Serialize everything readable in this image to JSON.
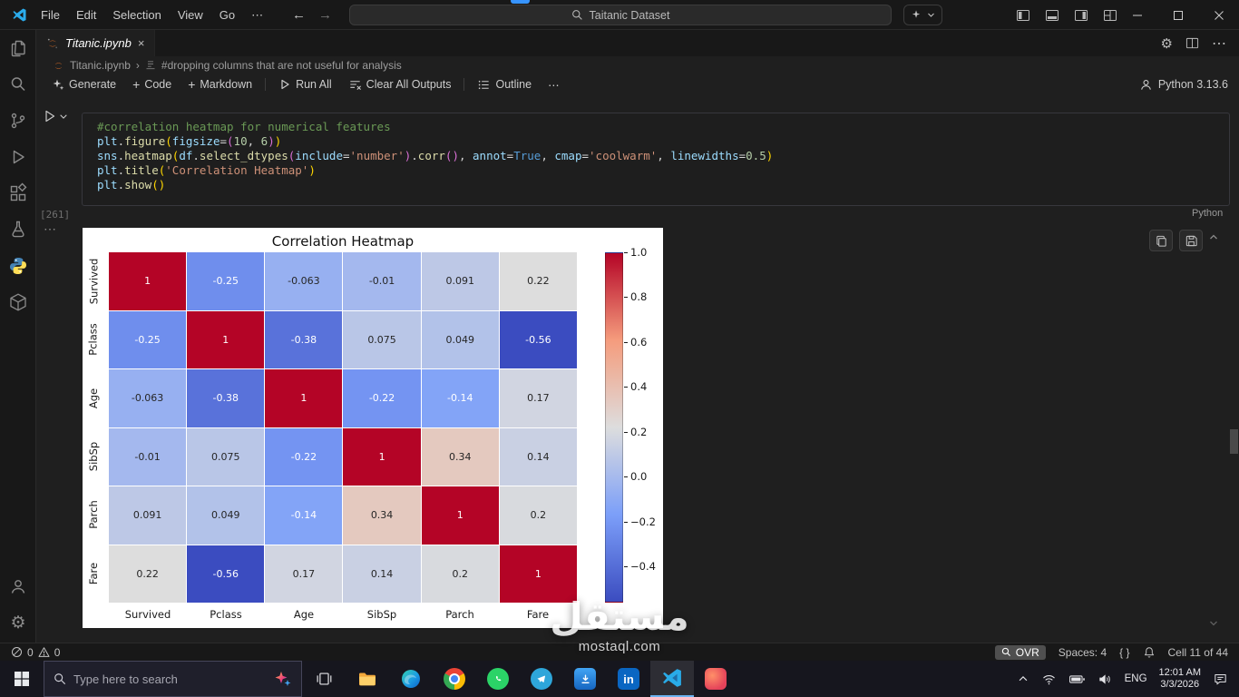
{
  "colors": {
    "accent": "#0078d4",
    "comment": "#6A9955",
    "variable": "#9CDCFE",
    "function": "#DCDCAA",
    "keyword": "#569CD6",
    "string": "#CE9178",
    "number": "#B5CEA8",
    "punctuation": "#D4D4D4",
    "bracket1": "#FFD700",
    "bracket2": "#DA70D6"
  },
  "title_bar": {
    "menus": [
      "File",
      "Edit",
      "Selection",
      "View",
      "Go"
    ],
    "menu_more": "⋯",
    "search_value": "Taitanic Dataset",
    "window_controls": [
      "minimize-icon",
      "maximize-icon",
      "close-icon"
    ],
    "layout_icons": [
      "layout-sidebar-left-icon",
      "layout-panel-icon",
      "layout-sidebar-right-icon",
      "layout-customize-icon"
    ]
  },
  "editor_tabs": {
    "active_tab": "Titanic.ipynb",
    "close": "×",
    "actions_more": "⋯"
  },
  "breadcrumb": {
    "file": "Titanic.ipynb",
    "separator": "›",
    "section": "#dropping columns that are not useful for analysis"
  },
  "notebook_toolbar": {
    "generate": "Generate",
    "code": "Code",
    "markdown": "Markdown",
    "run_all": "Run All",
    "clear_all": "Clear All Outputs",
    "outline": "Outline",
    "more": "⋯",
    "kernel": "Python 3.13.6"
  },
  "activity_bar": {
    "items": [
      "explorer-icon",
      "search-icon",
      "source-control-icon",
      "run-debug-icon",
      "extensions-icon",
      "testing-icon",
      "python-icon",
      "containers-icon"
    ],
    "bottom": [
      "account-icon",
      "settings-gear-icon"
    ]
  },
  "cell": {
    "execution_count": "[261]",
    "language": "Python",
    "code": [
      [
        {
          "t": "#correlation heatmap for numerical features",
          "c": "cm"
        }
      ],
      [
        {
          "t": "plt",
          "c": "v"
        },
        {
          "t": ".",
          "c": "p"
        },
        {
          "t": "figure",
          "c": "f"
        },
        {
          "t": "(",
          "c": "b1"
        },
        {
          "t": "figsize",
          "c": "v"
        },
        {
          "t": "=",
          "c": "p"
        },
        {
          "t": "(",
          "c": "b2"
        },
        {
          "t": "10",
          "c": "n"
        },
        {
          "t": ", ",
          "c": "p"
        },
        {
          "t": "6",
          "c": "n"
        },
        {
          "t": ")",
          "c": "b2"
        },
        {
          "t": ")",
          "c": "b1"
        }
      ],
      [
        {
          "t": "sns",
          "c": "v"
        },
        {
          "t": ".",
          "c": "p"
        },
        {
          "t": "heatmap",
          "c": "f"
        },
        {
          "t": "(",
          "c": "b1"
        },
        {
          "t": "df",
          "c": "v"
        },
        {
          "t": ".",
          "c": "p"
        },
        {
          "t": "select_dtypes",
          "c": "f"
        },
        {
          "t": "(",
          "c": "b2"
        },
        {
          "t": "include",
          "c": "v"
        },
        {
          "t": "=",
          "c": "p"
        },
        {
          "t": "'number'",
          "c": "s"
        },
        {
          "t": ")",
          "c": "b2"
        },
        {
          "t": ".",
          "c": "p"
        },
        {
          "t": "corr",
          "c": "f"
        },
        {
          "t": "(",
          "c": "b2"
        },
        {
          "t": ")",
          "c": "b2"
        },
        {
          "t": ", ",
          "c": "p"
        },
        {
          "t": "annot",
          "c": "v"
        },
        {
          "t": "=",
          "c": "p"
        },
        {
          "t": "True",
          "c": "k"
        },
        {
          "t": ", ",
          "c": "p"
        },
        {
          "t": "cmap",
          "c": "v"
        },
        {
          "t": "=",
          "c": "p"
        },
        {
          "t": "'coolwarm'",
          "c": "s"
        },
        {
          "t": ", ",
          "c": "p"
        },
        {
          "t": "linewidths",
          "c": "v"
        },
        {
          "t": "=",
          "c": "p"
        },
        {
          "t": "0.5",
          "c": "n"
        },
        {
          "t": ")",
          "c": "b1"
        }
      ],
      [
        {
          "t": "plt",
          "c": "v"
        },
        {
          "t": ".",
          "c": "p"
        },
        {
          "t": "title",
          "c": "f"
        },
        {
          "t": "(",
          "c": "b1"
        },
        {
          "t": "'Correlation Heatmap'",
          "c": "s"
        },
        {
          "t": ")",
          "c": "b1"
        }
      ],
      [
        {
          "t": "plt",
          "c": "v"
        },
        {
          "t": ".",
          "c": "p"
        },
        {
          "t": "show",
          "c": "f"
        },
        {
          "t": "(",
          "c": "b1"
        },
        {
          "t": ")",
          "c": "b1"
        }
      ]
    ]
  },
  "output": {
    "more": "⋯",
    "buttons": [
      "copy-output-icon",
      "save-output-icon"
    ]
  },
  "chart_data": {
    "type": "heatmap",
    "title": "Correlation Heatmap",
    "x_labels": [
      "Survived",
      "Pclass",
      "Age",
      "SibSp",
      "Parch",
      "Fare"
    ],
    "y_labels": [
      "Survived",
      "Pclass",
      "Age",
      "SibSp",
      "Parch",
      "Fare"
    ],
    "matrix": [
      [
        1,
        -0.25,
        -0.063,
        -0.01,
        0.091,
        0.22
      ],
      [
        -0.25,
        1,
        -0.38,
        0.075,
        0.049,
        -0.56
      ],
      [
        -0.063,
        -0.38,
        1,
        -0.22,
        -0.14,
        0.17
      ],
      [
        -0.01,
        0.075,
        -0.22,
        1,
        0.34,
        0.14
      ],
      [
        0.091,
        0.049,
        -0.14,
        0.34,
        1,
        0.2
      ],
      [
        0.22,
        -0.56,
        0.17,
        0.14,
        0.2,
        1
      ]
    ],
    "annot": true,
    "colormap": "coolwarm",
    "vmin": -0.56,
    "vmax": 1.0,
    "linewidths": 0.5,
    "colorbar_ticks": [
      1.0,
      0.8,
      0.6,
      0.4,
      0.2,
      0.0,
      -0.2,
      -0.4
    ],
    "legend_position": "right-colorbar",
    "grid": false
  },
  "status_bar": {
    "errors": "0",
    "warnings": "0",
    "ovr": "OVR",
    "spaces": "Spaces: 4",
    "braces": "{ }",
    "cell_position": "Cell 11 of 44"
  },
  "taskbar": {
    "search_placeholder": "Type here to search",
    "apps": [
      "task-view",
      "file-explorer",
      "edge",
      "chrome",
      "whatsapp",
      "telegram",
      "downloader",
      "linkedin",
      "vscode",
      "design-app"
    ],
    "active_app": "vscode",
    "tray": {
      "language": "ENG",
      "time": "12:01 AM",
      "date": "3/3/2026",
      "icons": [
        "hidden-icons-chevron",
        "network-icon",
        "battery-icon",
        "volume-icon",
        "action-center-icon"
      ]
    }
  },
  "watermark": {
    "arabic": "مستقل",
    "latin": "mostaql.com"
  }
}
